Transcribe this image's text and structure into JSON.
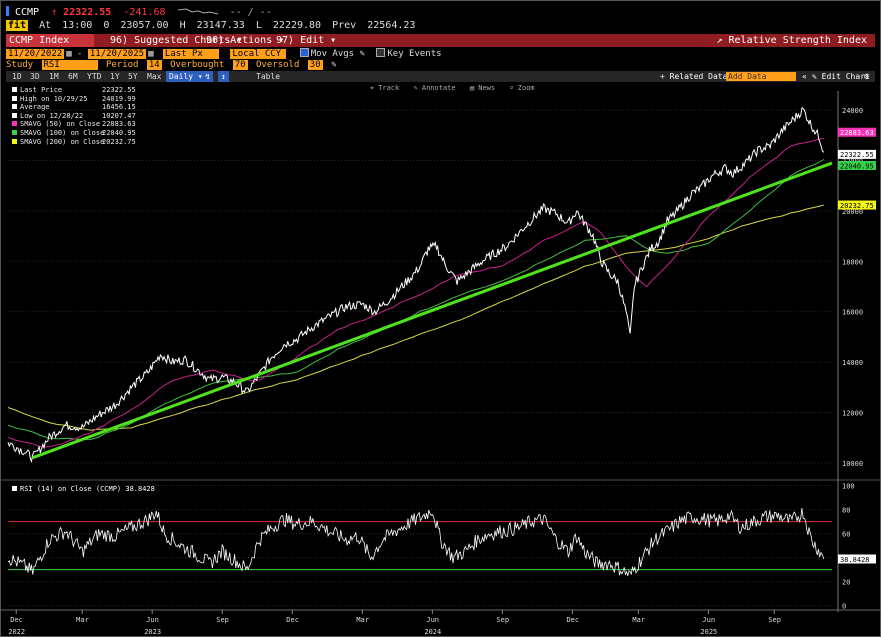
{
  "header": {
    "ticker": "CCMP",
    "up_arrow": "↑",
    "last": "22322.55",
    "change": "-241.68",
    "spark_dashes": "-- /  --",
    "row2": {
      "badge": "fit",
      "at_label": "At",
      "time": "13:00",
      "open_label": "0",
      "open": "23057.00",
      "high_label": "H",
      "high": "23147.33",
      "low_label": "L",
      "low": "22229.80",
      "prev_label": "Prev",
      "prev": "22564.23"
    }
  },
  "title_bar": {
    "security": "CCMP Index",
    "menus": [
      "96) Suggested Charts ▾",
      "96) Actions ▾",
      "97) Edit ▾"
    ],
    "title": "Relative Strength Index"
  },
  "settings": {
    "start_date": "11/20/2022",
    "end_date": "11/20/2025",
    "dash": "-",
    "price_field": "Last Px",
    "currency": "Local CCY",
    "mov_avgs_label": "Mov Avgs",
    "key_events_label": "Key Events",
    "study_label": "Study",
    "study_value": "RSI",
    "period_label": "Period",
    "period_value": "14",
    "overbought_label": "Overbought",
    "overbought_value": "70",
    "oversold_label": "Oversold",
    "oversold_value": "30"
  },
  "range_bar": {
    "periods": [
      "1D",
      "3D",
      "1M",
      "6M",
      "YTD",
      "1Y",
      "5Y",
      "Max"
    ],
    "frequency": "Daily ▾",
    "table": "Table",
    "related": "+ Related Data ▾",
    "user_data": "Add Data",
    "edit_chart": "✎ Edit Chart",
    "prev_arrow": "«",
    "gear": "⚙"
  },
  "chart_tools": [
    "⌖ Track",
    "✎ Annotate",
    "▤ News",
    "⌕ Zoom"
  ],
  "legend": [
    {
      "label": "Last Price",
      "value": "22322.55",
      "color": "#ffffff"
    },
    {
      "label": "High on 10/29/25",
      "value": "24019.99",
      "color": "#ffffff"
    },
    {
      "label": "Average",
      "value": "16456.15",
      "color": "#ffffff"
    },
    {
      "label": "Low on 12/28/22",
      "value": "10207.47",
      "color": "#ffffff"
    },
    {
      "label": "SMAVG (50)  on Close",
      "value": "22883.63",
      "color": "#ff2fb8"
    },
    {
      "label": "SMAVG (100)  on Close",
      "value": "22040.95",
      "color": "#38d14a"
    },
    {
      "label": "SMAVG (200)  on Close",
      "value": "20232.75",
      "color": "#f5f516"
    }
  ],
  "colors": {
    "price": "#ffffff",
    "sma50": "#c8208c",
    "sma100": "#3fbf3f",
    "sma200": "#d8d842",
    "trendline": "#4ee31c",
    "overbought": "#e03030",
    "oversold": "#3fd23f",
    "label_last": "#ffffff",
    "label_sma50": "#ff2fb8",
    "label_sma100": "#38d14a",
    "label_sma200": "#f5f516"
  },
  "rsi": {
    "label": "RSI (14) on Close (CCMP) 38.8428",
    "current": "38.8428"
  },
  "chart_data": {
    "type": "line",
    "title": "Relative Strength Index",
    "security": "CCMP Index",
    "price_y_range": [
      9400,
      24600
    ],
    "price_y_ticks": [
      10000,
      12000,
      14000,
      16000,
      18000,
      20000,
      22000,
      24000
    ],
    "rsi_y_range": [
      -2,
      103
    ],
    "rsi_y_ticks": [
      0,
      20,
      40,
      60,
      80,
      100
    ],
    "overbought": 70,
    "oversold": 30,
    "x_ticks": [
      {
        "label": "Dec",
        "year": "2022",
        "t": 0.01
      },
      {
        "label": "Mar",
        "year": "",
        "t": 0.09
      },
      {
        "label": "Jun",
        "year": "2023",
        "t": 0.175
      },
      {
        "label": "Sep",
        "year": "",
        "t": 0.26
      },
      {
        "label": "Dec",
        "year": "",
        "t": 0.345
      },
      {
        "label": "Mar",
        "year": "",
        "t": 0.43
      },
      {
        "label": "Jun",
        "year": "2024",
        "t": 0.515
      },
      {
        "label": "Sep",
        "year": "",
        "t": 0.6
      },
      {
        "label": "Dec",
        "year": "",
        "t": 0.685
      },
      {
        "label": "Mar",
        "year": "",
        "t": 0.765
      },
      {
        "label": "Jun",
        "year": "2025",
        "t": 0.85
      },
      {
        "label": "Sep",
        "year": "",
        "t": 0.93
      }
    ],
    "price_series": [
      [
        0,
        10800
      ],
      [
        0.02,
        10450
      ],
      [
        0.03,
        10207
      ],
      [
        0.05,
        11000
      ],
      [
        0.07,
        11500
      ],
      [
        0.09,
        11400
      ],
      [
        0.11,
        11900
      ],
      [
        0.13,
        12300
      ],
      [
        0.15,
        13000
      ],
      [
        0.17,
        13600
      ],
      [
        0.185,
        14300
      ],
      [
        0.2,
        14000
      ],
      [
        0.215,
        14100
      ],
      [
        0.23,
        13700
      ],
      [
        0.245,
        13300
      ],
      [
        0.26,
        13400
      ],
      [
        0.275,
        13200
      ],
      [
        0.29,
        12800
      ],
      [
        0.305,
        13500
      ],
      [
        0.32,
        14200
      ],
      [
        0.335,
        14700
      ],
      [
        0.35,
        14900
      ],
      [
        0.37,
        15400
      ],
      [
        0.39,
        15800
      ],
      [
        0.41,
        16200
      ],
      [
        0.43,
        16300
      ],
      [
        0.445,
        16000
      ],
      [
        0.46,
        16400
      ],
      [
        0.475,
        16900
      ],
      [
        0.49,
        17400
      ],
      [
        0.5,
        17800
      ],
      [
        0.51,
        18500
      ],
      [
        0.52,
        18600
      ],
      [
        0.53,
        17900
      ],
      [
        0.545,
        17200
      ],
      [
        0.56,
        17600
      ],
      [
        0.575,
        18000
      ],
      [
        0.59,
        18300
      ],
      [
        0.605,
        18600
      ],
      [
        0.625,
        19300
      ],
      [
        0.64,
        19800
      ],
      [
        0.65,
        20100
      ],
      [
        0.665,
        19900
      ],
      [
        0.68,
        19500
      ],
      [
        0.69,
        20000
      ],
      [
        0.7,
        19500
      ],
      [
        0.71,
        19000
      ],
      [
        0.72,
        18000
      ],
      [
        0.73,
        17500
      ],
      [
        0.74,
        17200
      ],
      [
        0.75,
        16000
      ],
      [
        0.755,
        15000
      ],
      [
        0.76,
        17000
      ],
      [
        0.77,
        17800
      ],
      [
        0.78,
        18500
      ],
      [
        0.79,
        18800
      ],
      [
        0.8,
        19600
      ],
      [
        0.81,
        19900
      ],
      [
        0.82,
        20300
      ],
      [
        0.83,
        20700
      ],
      [
        0.84,
        20900
      ],
      [
        0.855,
        21400
      ],
      [
        0.87,
        21700
      ],
      [
        0.88,
        21500
      ],
      [
        0.895,
        21900
      ],
      [
        0.91,
        22400
      ],
      [
        0.925,
        22600
      ],
      [
        0.94,
        23200
      ],
      [
        0.955,
        23700
      ],
      [
        0.965,
        24020
      ],
      [
        0.975,
        23400
      ],
      [
        0.985,
        22900
      ],
      [
        0.99,
        22322
      ]
    ],
    "sma50_series": [
      [
        0,
        11000
      ],
      [
        0.05,
        10600
      ],
      [
        0.1,
        11200
      ],
      [
        0.15,
        12100
      ],
      [
        0.2,
        13300
      ],
      [
        0.25,
        13700
      ],
      [
        0.3,
        13200
      ],
      [
        0.35,
        14200
      ],
      [
        0.4,
        15300
      ],
      [
        0.45,
        15900
      ],
      [
        0.5,
        16700
      ],
      [
        0.55,
        17500
      ],
      [
        0.6,
        17800
      ],
      [
        0.65,
        18800
      ],
      [
        0.7,
        19600
      ],
      [
        0.72,
        19100
      ],
      [
        0.75,
        17800
      ],
      [
        0.775,
        17000
      ],
      [
        0.8,
        17800
      ],
      [
        0.85,
        19800
      ],
      [
        0.9,
        21300
      ],
      [
        0.95,
        22600
      ],
      [
        0.99,
        22883
      ]
    ],
    "sma100_series": [
      [
        0,
        11500
      ],
      [
        0.05,
        11000
      ],
      [
        0.1,
        10900
      ],
      [
        0.15,
        11600
      ],
      [
        0.2,
        12500
      ],
      [
        0.25,
        13200
      ],
      [
        0.3,
        13400
      ],
      [
        0.35,
        13600
      ],
      [
        0.4,
        14500
      ],
      [
        0.45,
        15200
      ],
      [
        0.5,
        16000
      ],
      [
        0.55,
        16700
      ],
      [
        0.6,
        17200
      ],
      [
        0.65,
        18000
      ],
      [
        0.7,
        18800
      ],
      [
        0.75,
        19000
      ],
      [
        0.78,
        18400
      ],
      [
        0.8,
        18300
      ],
      [
        0.85,
        18700
      ],
      [
        0.9,
        20000
      ],
      [
        0.95,
        21400
      ],
      [
        0.99,
        22040
      ]
    ],
    "sma200_series": [
      [
        0,
        12200
      ],
      [
        0.05,
        11600
      ],
      [
        0.1,
        11300
      ],
      [
        0.15,
        11400
      ],
      [
        0.2,
        11900
      ],
      [
        0.25,
        12400
      ],
      [
        0.3,
        12900
      ],
      [
        0.35,
        13300
      ],
      [
        0.4,
        13900
      ],
      [
        0.45,
        14500
      ],
      [
        0.5,
        15100
      ],
      [
        0.55,
        15700
      ],
      [
        0.6,
        16400
      ],
      [
        0.65,
        17100
      ],
      [
        0.7,
        17800
      ],
      [
        0.75,
        18300
      ],
      [
        0.8,
        18500
      ],
      [
        0.85,
        18900
      ],
      [
        0.9,
        19500
      ],
      [
        0.95,
        19900
      ],
      [
        0.99,
        20232
      ]
    ],
    "trendline": [
      [
        0.03,
        10207
      ],
      [
        1.0,
        21900
      ]
    ],
    "rsi_series": [
      [
        0,
        40
      ],
      [
        0.02,
        33
      ],
      [
        0.03,
        28
      ],
      [
        0.05,
        55
      ],
      [
        0.07,
        62
      ],
      [
        0.09,
        45
      ],
      [
        0.11,
        60
      ],
      [
        0.13,
        58
      ],
      [
        0.15,
        65
      ],
      [
        0.17,
        72
      ],
      [
        0.18,
        78
      ],
      [
        0.19,
        60
      ],
      [
        0.21,
        50
      ],
      [
        0.23,
        42
      ],
      [
        0.245,
        35
      ],
      [
        0.26,
        45
      ],
      [
        0.275,
        38
      ],
      [
        0.29,
        30
      ],
      [
        0.305,
        55
      ],
      [
        0.32,
        65
      ],
      [
        0.335,
        72
      ],
      [
        0.35,
        68
      ],
      [
        0.37,
        70
      ],
      [
        0.39,
        62
      ],
      [
        0.41,
        55
      ],
      [
        0.425,
        58
      ],
      [
        0.44,
        40
      ],
      [
        0.455,
        55
      ],
      [
        0.47,
        62
      ],
      [
        0.49,
        70
      ],
      [
        0.505,
        75
      ],
      [
        0.515,
        80
      ],
      [
        0.525,
        55
      ],
      [
        0.54,
        40
      ],
      [
        0.555,
        45
      ],
      [
        0.57,
        55
      ],
      [
        0.585,
        60
      ],
      [
        0.6,
        62
      ],
      [
        0.62,
        65
      ],
      [
        0.635,
        70
      ],
      [
        0.65,
        72
      ],
      [
        0.665,
        55
      ],
      [
        0.68,
        45
      ],
      [
        0.69,
        58
      ],
      [
        0.7,
        45
      ],
      [
        0.715,
        35
      ],
      [
        0.73,
        35
      ],
      [
        0.745,
        30
      ],
      [
        0.755,
        25
      ],
      [
        0.765,
        35
      ],
      [
        0.775,
        45
      ],
      [
        0.785,
        55
      ],
      [
        0.8,
        62
      ],
      [
        0.815,
        70
      ],
      [
        0.83,
        74
      ],
      [
        0.845,
        72
      ],
      [
        0.86,
        70
      ],
      [
        0.875,
        75
      ],
      [
        0.89,
        65
      ],
      [
        0.905,
        70
      ],
      [
        0.92,
        74
      ],
      [
        0.935,
        75
      ],
      [
        0.95,
        70
      ],
      [
        0.965,
        78
      ],
      [
        0.975,
        55
      ],
      [
        0.985,
        45
      ],
      [
        0.99,
        38.8
      ]
    ]
  }
}
